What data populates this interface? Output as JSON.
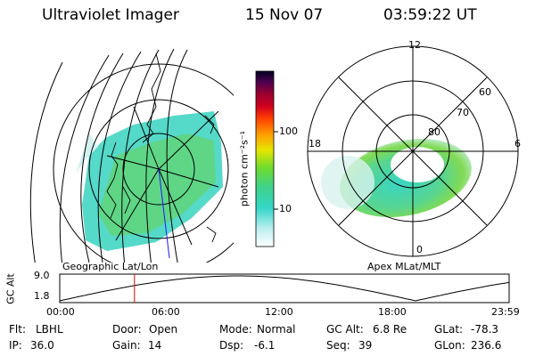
{
  "header": {
    "instrument": "Ultraviolet Imager",
    "date": "15 Nov 07",
    "time": "03:59:22 UT"
  },
  "left_map": {
    "caption": "Geographic Lat/Lon"
  },
  "right_map": {
    "caption": "Apex MLat/MLT",
    "hour_labels": {
      "top": "12",
      "left": "18",
      "right": "6",
      "bottom": "0"
    },
    "lat_labels": [
      "60",
      "70",
      "80"
    ]
  },
  "colorbar": {
    "label": "photon cm⁻²s⁻¹",
    "tick_labels": [
      "100",
      "10"
    ]
  },
  "altitude_plot": {
    "axis_label": "GC Alt",
    "y_ticks": [
      "9.0",
      "1.8"
    ],
    "x_ticks": [
      "00:00",
      "06:00",
      "12:00",
      "18:00",
      "23:59"
    ],
    "current_time_hours": 3.99
  },
  "info": {
    "flt_label": "Flt:",
    "flt_value": "LBHL",
    "door_label": "Door:",
    "door_value": "Open",
    "mode_label": "Mode:",
    "mode_value": "Normal",
    "gcalt_label": "GC Alt:",
    "gcalt_value": "6.8 Re",
    "glat_label": "GLat:",
    "glat_value": "-78.3",
    "ip_label": "IP:",
    "ip_value": "36.0",
    "gain_label": "Gain:",
    "gain_value": "14",
    "dsp_label": "Dsp:",
    "dsp_value": "-6.1",
    "seq_label": "Seq:",
    "seq_value": "39",
    "glon_label": "GLon:",
    "glon_value": "236.6"
  },
  "colors": {
    "marker": "#e00000",
    "track": "#000000"
  }
}
